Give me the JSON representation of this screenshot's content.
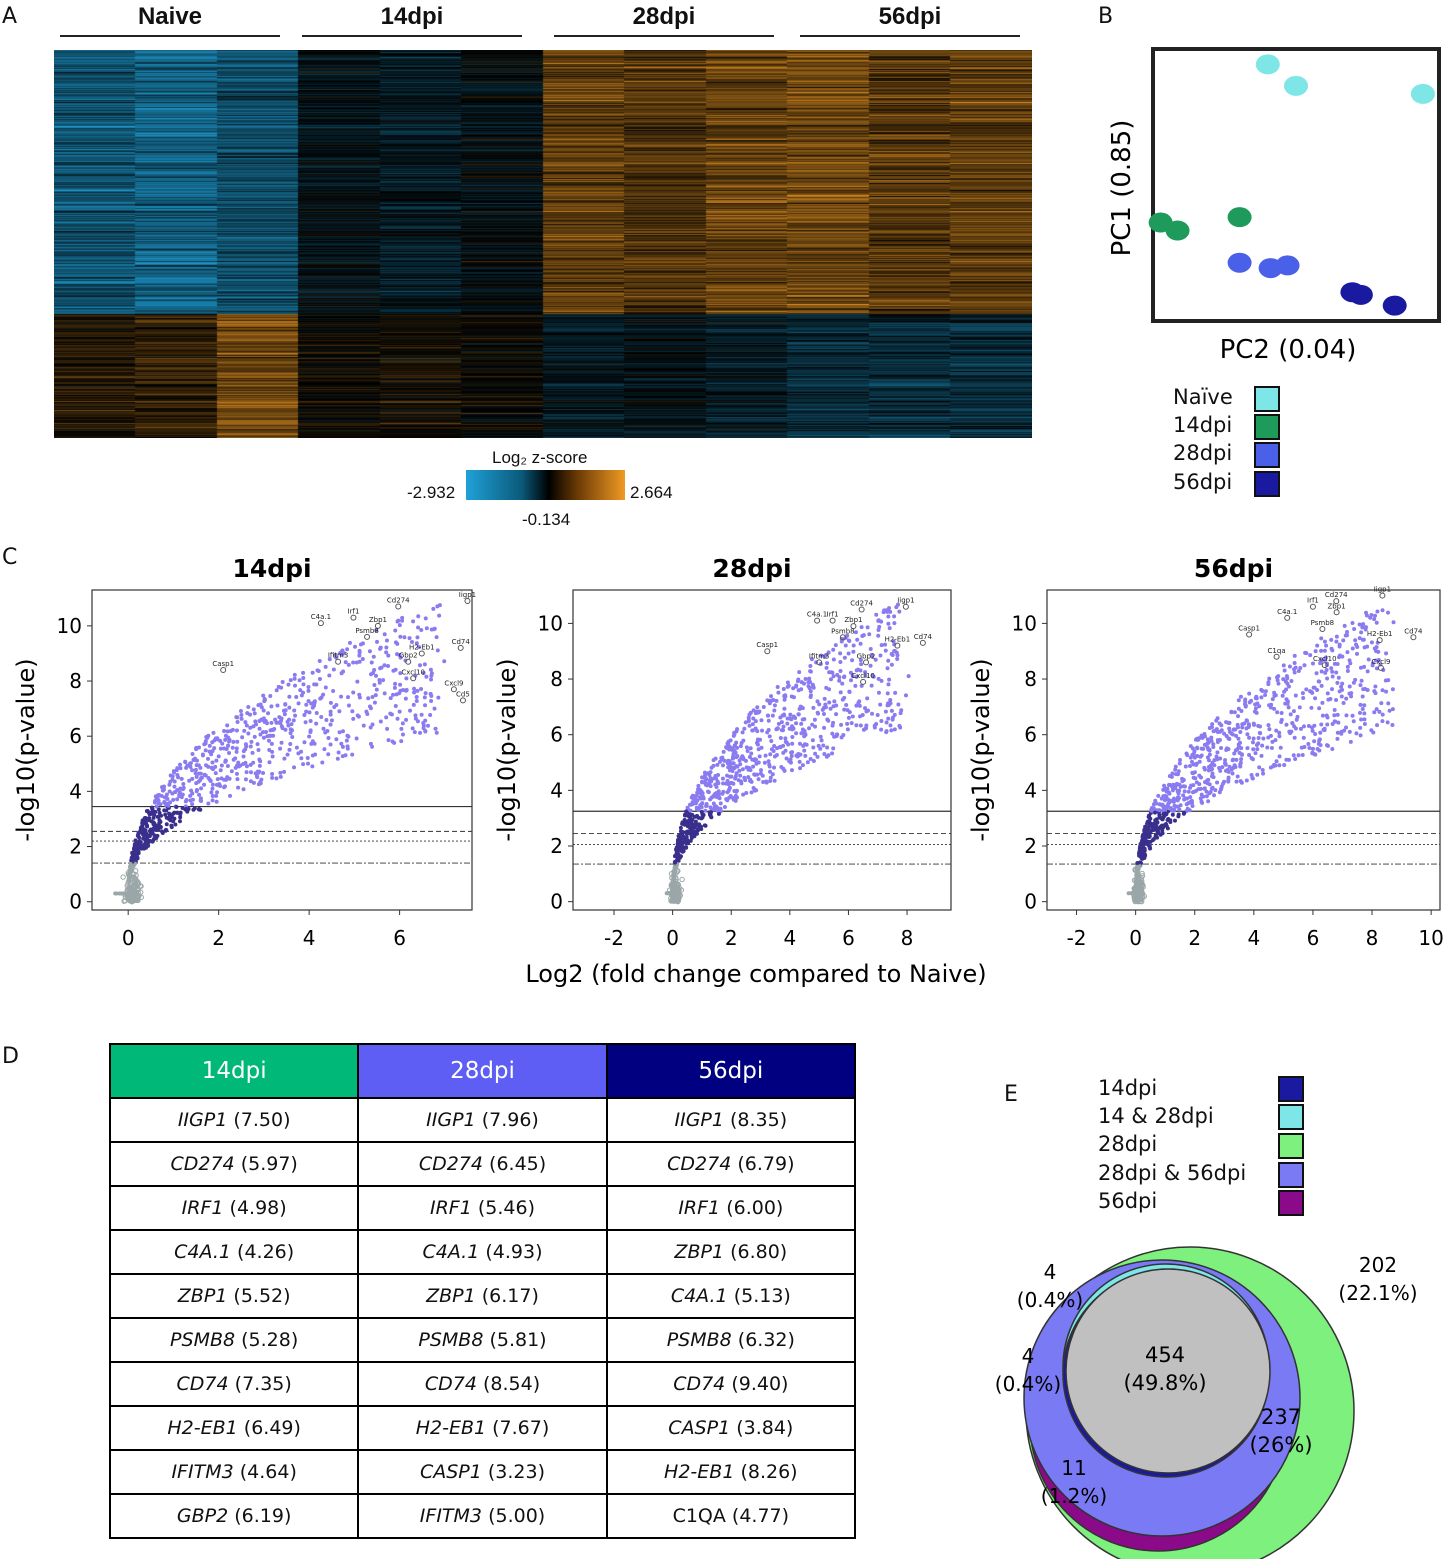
{
  "panels": {
    "a": "A",
    "b": "B",
    "c": "C",
    "d": "D",
    "e": "E"
  },
  "heatmap": {
    "groups": [
      "Naive",
      "14dpi",
      "28dpi",
      "56dpi"
    ],
    "colorbar_title": "Log₂ z-score",
    "colorbar_min": "-2.932",
    "colorbar_mid": "-0.134",
    "colorbar_max": "2.664",
    "colors": {
      "low": "#1fa1d8",
      "mid": "#000000",
      "high": "#f09a23"
    }
  },
  "pca": {
    "xlabel": "PC2 (0.04)",
    "ylabel": "PC1 (0.85)",
    "legend": [
      {
        "label": "Naïve",
        "color": "#7ee6e6"
      },
      {
        "label": "14dpi",
        "color": "#1e9a5a"
      },
      {
        "label": "28dpi",
        "color": "#4a60e8"
      },
      {
        "label": "56dpi",
        "color": "#1a1aa0"
      }
    ]
  },
  "volcano": {
    "xlabel": "Log2 (fold change compared to Naive)",
    "ylabel": "-log10(p-value)",
    "point_color_sig": "#8a7cf0",
    "point_color_mid": "#3a2f8c",
    "point_color_ns": "#9aa6a8"
  },
  "table": {
    "headers": [
      {
        "label": "14dpi",
        "color": "#00b877"
      },
      {
        "label": "28dpi",
        "color": "#5e5ef5"
      },
      {
        "label": "56dpi",
        "color": "#000080"
      }
    ],
    "rows": [
      [
        {
          "g": "IIGP1",
          "v": "(7.50)"
        },
        {
          "g": "IIGP1",
          "v": "(7.96)"
        },
        {
          "g": "IIGP1",
          "v": "(8.35)"
        }
      ],
      [
        {
          "g": "CD274",
          "v": "(5.97)"
        },
        {
          "g": "CD274",
          "v": "(6.45)"
        },
        {
          "g": "CD274",
          "v": "(6.79)"
        }
      ],
      [
        {
          "g": "IRF1",
          "v": "(4.98)"
        },
        {
          "g": "IRF1",
          "v": "(5.46)"
        },
        {
          "g": "IRF1",
          "v": "(6.00)"
        }
      ],
      [
        {
          "g": "C4A.1",
          "v": "(4.26)"
        },
        {
          "g": "C4A.1",
          "v": "(4.93)"
        },
        {
          "g": "ZBP1",
          "v": "(6.80)"
        }
      ],
      [
        {
          "g": "ZBP1",
          "v": "(5.52)"
        },
        {
          "g": "ZBP1",
          "v": "(6.17)"
        },
        {
          "g": "C4A.1",
          "v": "(5.13)"
        }
      ],
      [
        {
          "g": "PSMB8",
          "v": "(5.28)"
        },
        {
          "g": "PSMB8",
          "v": "(5.81)"
        },
        {
          "g": "PSMB8",
          "v": "(6.32)"
        }
      ],
      [
        {
          "g": "CD74",
          "v": "(7.35)"
        },
        {
          "g": "CD74",
          "v": "(8.54)"
        },
        {
          "g": "CD74",
          "v": "(9.40)"
        }
      ],
      [
        {
          "g": "H2-EB1",
          "v": "(6.49)"
        },
        {
          "g": "H2-EB1",
          "v": "(7.67)"
        },
        {
          "g": "CASP1",
          "v": "(3.84)"
        }
      ],
      [
        {
          "g": "IFITM3",
          "v": "(4.64)"
        },
        {
          "g": "CASP1",
          "v": "(3.23)"
        },
        {
          "g": "H2-EB1",
          "v": "(8.26)"
        }
      ],
      [
        {
          "g": "GBP2",
          "v": "(6.19)"
        },
        {
          "g": "IFITM3",
          "v": "(5.00)"
        },
        {
          "g": "",
          "v": "C1QA (4.77)"
        }
      ]
    ]
  },
  "venn": {
    "legend": [
      {
        "label": "14dpi",
        "color": "#1a1aa0"
      },
      {
        "label": "14 & 28dpi",
        "color": "#7ee6e6"
      },
      {
        "label": "28dpi",
        "color": "#7ef07e"
      },
      {
        "label": "28dpi & 56dpi",
        "color": "#7a7af5"
      },
      {
        "label": "56dpi",
        "color": "#8a0a8a"
      }
    ],
    "labels": {
      "a_n": "4",
      "a_p": "(0.4%)",
      "b_n": "4",
      "b_p": "(0.4%)",
      "c_n": "11",
      "c_p": "(1.2%)",
      "d_n": "202",
      "d_p": "(22.1%)",
      "e_n": "454",
      "e_p": "(49.8%)",
      "f_n": "237",
      "f_p": "(26%)"
    }
  },
  "chart_data": [
    {
      "type": "heatmap",
      "title": "",
      "columns": [
        "Naive",
        "Naive",
        "Naive",
        "14dpi",
        "14dpi",
        "14dpi",
        "28dpi",
        "28dpi",
        "28dpi",
        "56dpi",
        "56dpi",
        "56dpi"
      ],
      "value_range": [
        -2.932,
        2.664
      ],
      "colorbar_label": "Log2 z-score",
      "column_mean_zscore": [
        -1.6,
        -1.9,
        -1.5,
        -0.3,
        -0.5,
        -0.2,
        1.2,
        1.0,
        1.3,
        1.4,
        1.1,
        1.2
      ]
    },
    {
      "type": "scatter",
      "title": "",
      "xlabel": "PC2 (0.04)",
      "ylabel": "PC1 (0.85)",
      "series": [
        {
          "name": "Naïve",
          "points": [
            [
              0.4,
              0.95
            ],
            [
              0.5,
              0.87
            ],
            [
              0.95,
              0.84
            ]
          ]
        },
        {
          "name": "14dpi",
          "points": [
            [
              0.02,
              0.36
            ],
            [
              0.08,
              0.33
            ],
            [
              0.3,
              0.38
            ]
          ]
        },
        {
          "name": "28dpi",
          "points": [
            [
              0.3,
              0.21
            ],
            [
              0.41,
              0.19
            ],
            [
              0.47,
              0.2
            ]
          ]
        },
        {
          "name": "56dpi",
          "points": [
            [
              0.7,
              0.1
            ],
            [
              0.73,
              0.09
            ],
            [
              0.85,
              0.05
            ]
          ]
        }
      ]
    },
    {
      "type": "scatter",
      "title": "14dpi",
      "xlabel": "Log2 (fold change compared to Naive)",
      "ylabel": "-log10(p-value)",
      "xlim": [
        -0.8,
        7.6
      ],
      "ylim": [
        -0.3,
        11.3
      ],
      "xticks": [
        0,
        2,
        4,
        6
      ],
      "yticks": [
        0,
        2,
        4,
        6,
        8,
        10
      ],
      "thresholds": [
        3.45,
        2.55,
        2.2,
        1.4
      ],
      "labeled_genes": [
        {
          "gene": "Iigp1",
          "x": 7.5,
          "y": 10.9
        },
        {
          "gene": "Cd274",
          "x": 5.97,
          "y": 10.7
        },
        {
          "gene": "Irf1",
          "x": 4.98,
          "y": 10.3
        },
        {
          "gene": "C4a.1",
          "x": 4.26,
          "y": 10.1
        },
        {
          "gene": "Zbp1",
          "x": 5.52,
          "y": 10.0
        },
        {
          "gene": "Psmb8",
          "x": 5.28,
          "y": 9.6
        },
        {
          "gene": "Cd74",
          "x": 7.35,
          "y": 9.2
        },
        {
          "gene": "H2-Eb1",
          "x": 6.49,
          "y": 9.0
        },
        {
          "gene": "Ifitm3",
          "x": 4.64,
          "y": 8.7
        },
        {
          "gene": "Gbp2",
          "x": 6.19,
          "y": 8.7
        },
        {
          "gene": "Cxcl10",
          "x": 6.3,
          "y": 8.1
        },
        {
          "gene": "Casp1",
          "x": 2.1,
          "y": 8.4
        },
        {
          "gene": "Cd5",
          "x": 7.4,
          "y": 7.3
        },
        {
          "gene": "Cxcl9",
          "x": 7.2,
          "y": 7.7
        }
      ]
    },
    {
      "type": "scatter",
      "title": "28dpi",
      "xlabel": "Log2 (fold change compared to Naive)",
      "ylabel": "-log10(p-value)",
      "xlim": [
        -3.4,
        9.5
      ],
      "ylim": [
        -0.3,
        11.2
      ],
      "xticks": [
        -2,
        0,
        2,
        4,
        6,
        8
      ],
      "yticks": [
        0,
        2,
        4,
        6,
        8,
        10
      ],
      "thresholds": [
        3.25,
        2.45,
        2.05,
        1.35
      ],
      "labeled_genes": [
        {
          "gene": "Iigp1",
          "x": 7.96,
          "y": 10.6
        },
        {
          "gene": "Cd274",
          "x": 6.45,
          "y": 10.5
        },
        {
          "gene": "Irf1",
          "x": 5.46,
          "y": 10.1
        },
        {
          "gene": "C4a.1",
          "x": 4.93,
          "y": 10.1
        },
        {
          "gene": "Zbp1",
          "x": 6.17,
          "y": 9.9
        },
        {
          "gene": "Psmb8",
          "x": 5.81,
          "y": 9.5
        },
        {
          "gene": "Cd74",
          "x": 8.54,
          "y": 9.3
        },
        {
          "gene": "H2-Eb1",
          "x": 7.67,
          "y": 9.2
        },
        {
          "gene": "Casp1",
          "x": 3.23,
          "y": 9.0
        },
        {
          "gene": "Ifitm3",
          "x": 5.0,
          "y": 8.6
        },
        {
          "gene": "Gbp2",
          "x": 6.6,
          "y": 8.6
        },
        {
          "gene": "Cxcl10",
          "x": 6.5,
          "y": 7.9
        }
      ]
    },
    {
      "type": "scatter",
      "title": "56dpi",
      "xlabel": "Log2 (fold change compared to Naive)",
      "ylabel": "-log10(p-value)",
      "xlim": [
        -3.0,
        10.3
      ],
      "ylim": [
        -0.3,
        11.2
      ],
      "xticks": [
        -2,
        0,
        2,
        4,
        6,
        8,
        10
      ],
      "yticks": [
        0,
        2,
        4,
        6,
        8,
        10
      ],
      "thresholds": [
        3.25,
        2.45,
        2.05,
        1.35
      ],
      "labeled_genes": [
        {
          "gene": "Iigp1",
          "x": 8.35,
          "y": 11.0
        },
        {
          "gene": "Cd274",
          "x": 6.79,
          "y": 10.8
        },
        {
          "gene": "Irf1",
          "x": 6.0,
          "y": 10.6
        },
        {
          "gene": "Zbp1",
          "x": 6.8,
          "y": 10.4
        },
        {
          "gene": "C4a.1",
          "x": 5.13,
          "y": 10.2
        },
        {
          "gene": "Psmb8",
          "x": 6.32,
          "y": 9.8
        },
        {
          "gene": "Cd74",
          "x": 9.4,
          "y": 9.5
        },
        {
          "gene": "H2-Eb1",
          "x": 8.26,
          "y": 9.4
        },
        {
          "gene": "Casp1",
          "x": 3.84,
          "y": 9.6
        },
        {
          "gene": "C1qa",
          "x": 4.77,
          "y": 8.8
        },
        {
          "gene": "Cxcl10",
          "x": 6.4,
          "y": 8.5
        },
        {
          "gene": "Cxcl9",
          "x": 8.3,
          "y": 8.4
        }
      ]
    },
    {
      "type": "venn",
      "sets": [
        {
          "name": "14dpi only",
          "count": 4,
          "percent": 0.4
        },
        {
          "name": "14 & 28dpi",
          "count": 4,
          "percent": 0.4
        },
        {
          "name": "56dpi only",
          "count": 11,
          "percent": 1.2
        },
        {
          "name": "28dpi only",
          "count": 202,
          "percent": 22.1
        },
        {
          "name": "all",
          "count": 454,
          "percent": 49.8
        },
        {
          "name": "28dpi & 56dpi",
          "count": 237,
          "percent": 26
        }
      ]
    }
  ]
}
